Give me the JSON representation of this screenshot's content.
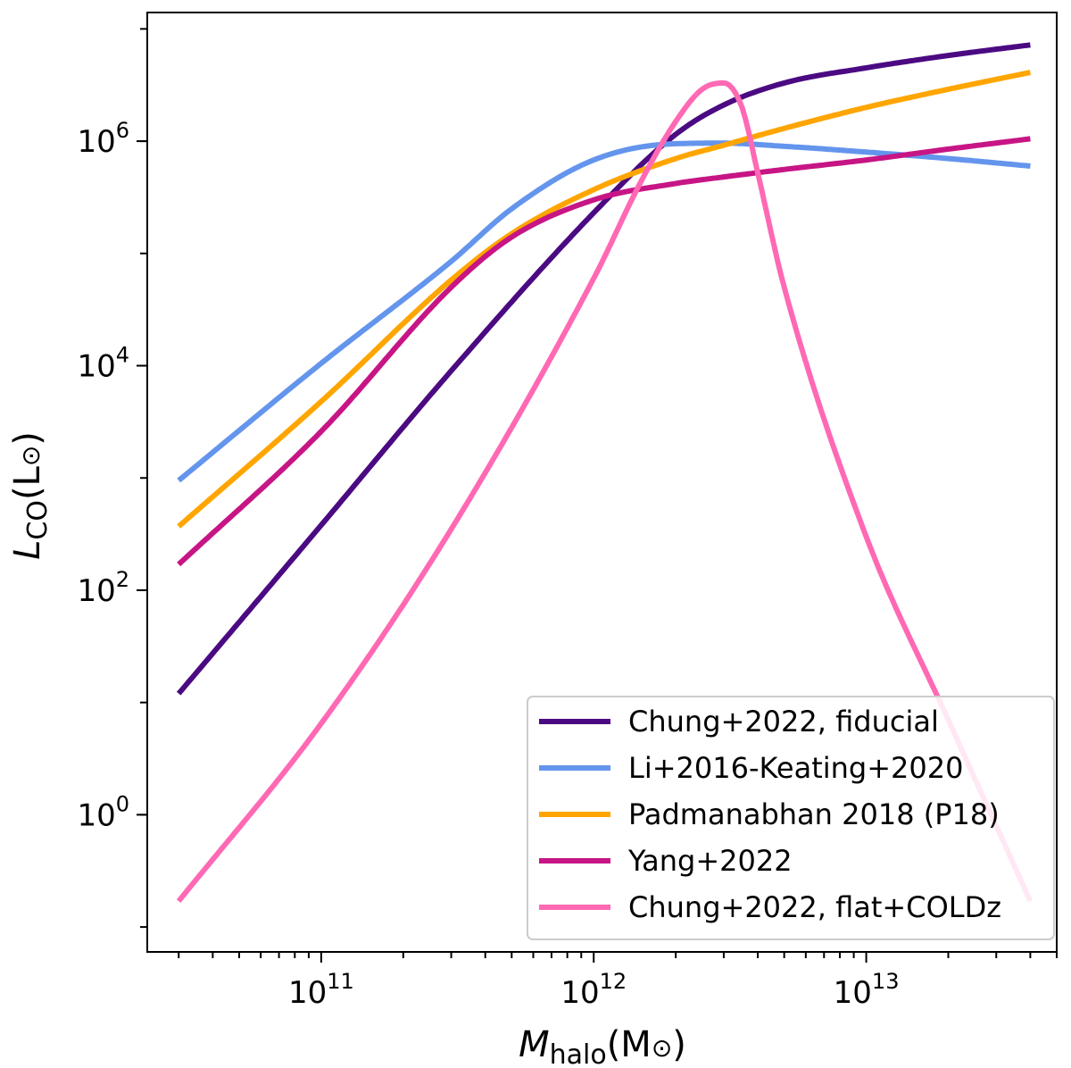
{
  "chart_data": {
    "type": "line",
    "xscale": "log",
    "yscale": "log",
    "xlim": [
      23000000000.0,
      50000000000000.0
    ],
    "ylim": [
      0.06,
      14000000.0
    ],
    "grid": false,
    "legend_position": "lower-right",
    "xlabel": {
      "symbol": "M",
      "subscript": "halo",
      "unit": "(M",
      "unit_sym": "⊙",
      "unit_close": ")"
    },
    "ylabel": {
      "symbol": "L",
      "subscript": "CO",
      "unit": "(L",
      "unit_sym": "⊙",
      "unit_close": ")"
    },
    "x_ticks": [
      {
        "value": 100000000000.0,
        "base": "10",
        "exp": "11"
      },
      {
        "value": 1000000000000.0,
        "base": "10",
        "exp": "12"
      },
      {
        "value": 10000000000000.0,
        "base": "10",
        "exp": "13"
      }
    ],
    "y_ticks": [
      {
        "value": 1,
        "base": "10",
        "exp": "0"
      },
      {
        "value": 100,
        "base": "10",
        "exp": "2"
      },
      {
        "value": 10000,
        "base": "10",
        "exp": "4"
      },
      {
        "value": 1000000,
        "base": "10",
        "exp": "6"
      }
    ],
    "series": [
      {
        "name": "Chung+2022, fiducial",
        "color": "#4b0a82",
        "x": [
          30000000000.0,
          100000000000.0,
          300000000000.0,
          1000000000000.0,
          2000000000000.0,
          3000000000000.0,
          5000000000000.0,
          10000000000000.0,
          20000000000000.0,
          40000000000000.0
        ],
        "y": [
          12,
          380,
          9000,
          230000,
          1150000,
          2100000,
          3300000,
          4500000,
          5800000,
          7200000
        ]
      },
      {
        "name": "Li+2016-Keating+2020",
        "color": "#6495ed",
        "x": [
          30000000000.0,
          100000000000.0,
          300000000000.0,
          500000000000.0,
          1000000000000.0,
          2000000000000.0,
          3000000000000.0,
          5000000000000.0,
          10000000000000.0,
          20000000000000.0,
          40000000000000.0
        ],
        "y": [
          950,
          10500,
          85000,
          250000,
          680000,
          950000,
          960000,
          900000,
          800000,
          700000,
          600000
        ]
      },
      {
        "name": "Padmanabhan 2018 (P18)",
        "color": "#ffa500",
        "x": [
          30000000000.0,
          100000000000.0,
          300000000000.0,
          500000000000.0,
          1000000000000.0,
          2000000000000.0,
          3000000000000.0,
          5000000000000.0,
          10000000000000.0,
          20000000000000.0,
          40000000000000.0
        ],
        "y": [
          370,
          4800,
          58000,
          150000,
          370000,
          700000,
          920000,
          1300000,
          2000000,
          2900000,
          4100000
        ]
      },
      {
        "name": "Yang+2022",
        "color": "#c71585",
        "x": [
          30000000000.0,
          100000000000.0,
          300000000000.0,
          500000000000.0,
          1000000000000.0,
          2000000000000.0,
          3000000000000.0,
          5000000000000.0,
          10000000000000.0,
          20000000000000.0,
          40000000000000.0
        ],
        "y": [
          170,
          2600,
          50000,
          140000,
          300000,
          420000,
          480000,
          560000,
          680000,
          850000,
          1050000
        ]
      },
      {
        "name": "Chung+2022, flat+COLDz",
        "color": "#ff69b4",
        "x": [
          30000000000.0,
          100000000000.0,
          300000000000.0,
          1000000000000.0,
          1500000000000.0,
          2000000000000.0,
          2500000000000.0,
          3000000000000.0,
          3500000000000.0,
          4000000000000.0,
          5000000000000.0,
          10000000000000.0,
          20000000000000.0,
          40000000000000.0
        ],
        "y": [
          0.17,
          6.5,
          350,
          60000,
          450000,
          1500000,
          2900000,
          3300000,
          2000000,
          520000,
          50000,
          300,
          7,
          0.17
        ]
      }
    ]
  }
}
